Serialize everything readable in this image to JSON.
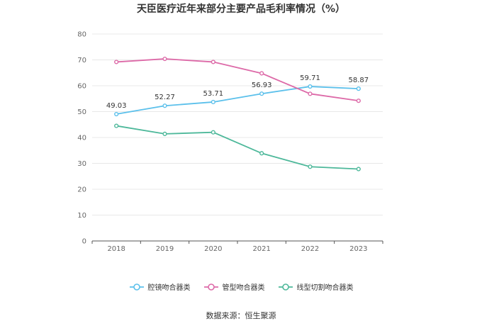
{
  "chart_data": {
    "type": "line",
    "title": "天臣医疗近年来部分主要产品毛利率情况（%）",
    "categories": [
      "2018",
      "2019",
      "2020",
      "2021",
      "2022",
      "2023"
    ],
    "ylim": [
      0,
      80
    ],
    "yticks": [
      0,
      10,
      20,
      30,
      40,
      50,
      60,
      70,
      80
    ],
    "grid": true,
    "legend_position": "bottom",
    "series": [
      {
        "name": "腔镜吻合器类",
        "color": "#5bc0eb",
        "values": [
          49.03,
          52.27,
          53.71,
          56.93,
          59.71,
          58.87
        ],
        "labels": [
          "49.03",
          "52.27",
          "53.71",
          "56.93",
          "59.71",
          "58.87"
        ]
      },
      {
        "name": "管型吻合器类",
        "color": "#dd6aa8",
        "values": [
          69.2,
          70.4,
          69.2,
          64.8,
          56.9,
          54.2
        ]
      },
      {
        "name": "线型切割吻合器类",
        "color": "#4db89a",
        "values": [
          44.5,
          41.4,
          42.0,
          33.9,
          28.7,
          27.8
        ]
      }
    ]
  },
  "source": "数据来源：恒生聚源"
}
